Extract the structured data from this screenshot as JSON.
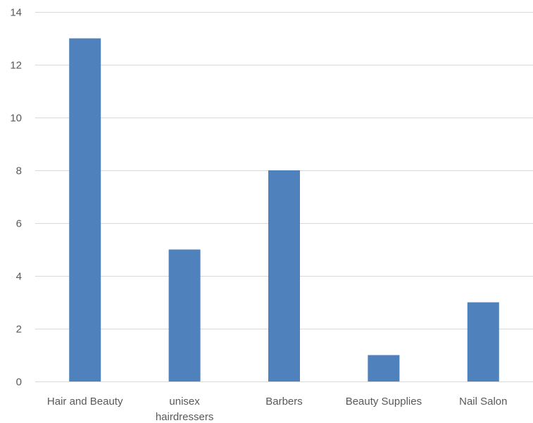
{
  "chart_data": {
    "type": "bar",
    "title": "",
    "xlabel": "",
    "ylabel": "",
    "categories": [
      "Hair and Beauty",
      "unisex hairdressers",
      "Barbers",
      "Beauty Supplies",
      "Nail Salon"
    ],
    "category_label_lines": [
      [
        "Hair and Beauty"
      ],
      [
        "unisex",
        "hairdressers"
      ],
      [
        "Barbers"
      ],
      [
        "Beauty Supplies"
      ],
      [
        "Nail Salon"
      ]
    ],
    "values": [
      13,
      5,
      8,
      1,
      3
    ],
    "ylim": [
      0,
      14
    ],
    "yticks": [
      0,
      2,
      4,
      6,
      8,
      10,
      12,
      14
    ],
    "grid": true,
    "legend": "none",
    "bar_color": "#4f81bd"
  }
}
